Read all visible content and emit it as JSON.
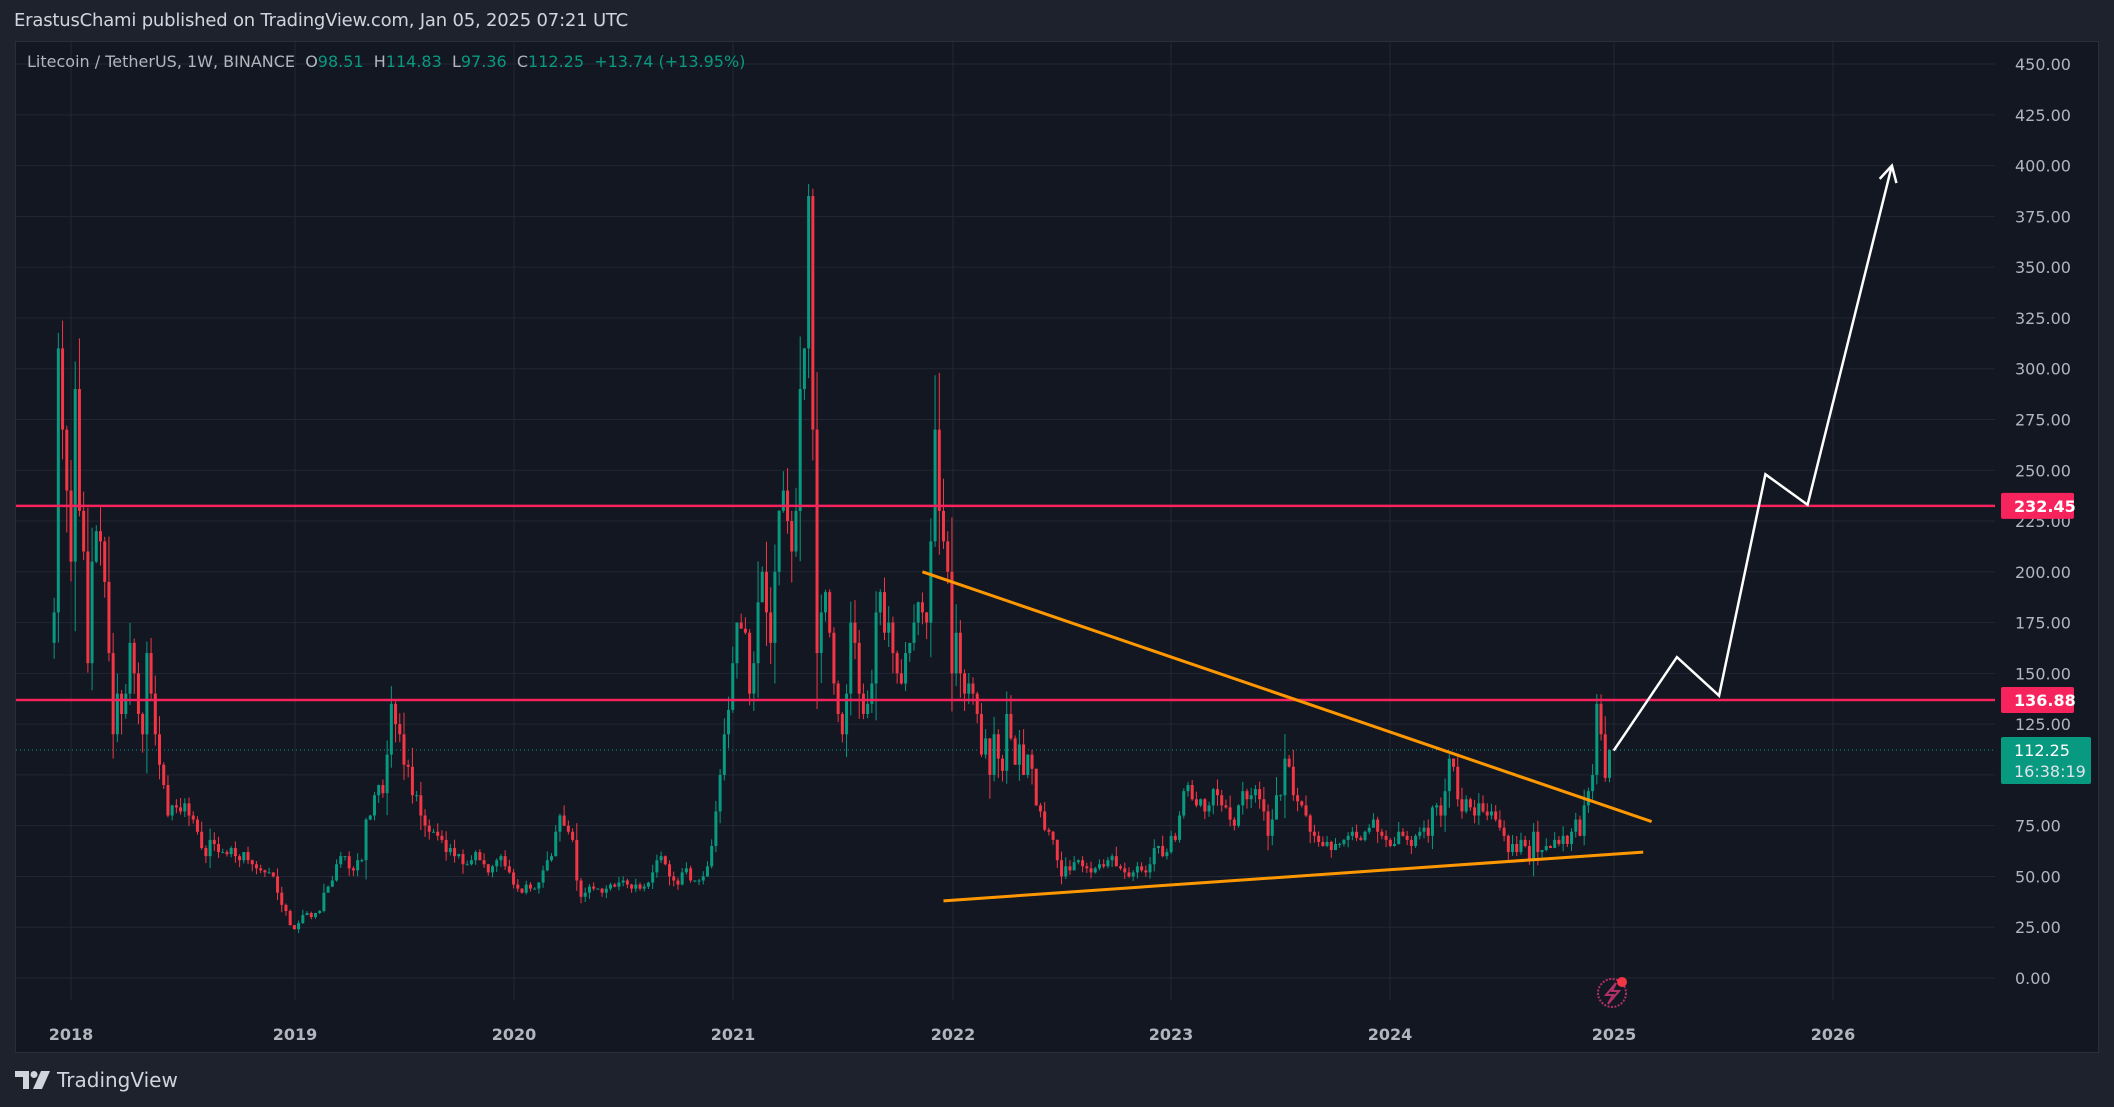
{
  "header": {
    "published": "ErastusChami published on TradingView.com, Jan 05, 2025 07:21 UTC"
  },
  "legend": {
    "symbol": "Litecoin / TetherUS, 1W, BINANCE",
    "o_label": "O",
    "o_value": "98.51",
    "h_label": "H",
    "h_value": "114.83",
    "l_label": "L",
    "l_value": "97.36",
    "c_label": "C",
    "c_value": "112.25",
    "change": "+13.74 (+13.95%)"
  },
  "footer": {
    "brand": "TradingView"
  },
  "colors": {
    "up": "#089981",
    "down": "#f23645",
    "level": "#f7235d",
    "trend": "#ff9800",
    "projection": "#ffffff",
    "grid": "#232733",
    "axis_text": "#b2b5be",
    "last_price_bg": "#089981"
  },
  "chart_data": {
    "type": "candlestick",
    "title": "Litecoin / TetherUS, 1W, BINANCE",
    "xlabel": "",
    "ylabel": "",
    "ylim": [
      0,
      450
    ],
    "y_ticks": [
      "450.00",
      "425.00",
      "400.00",
      "375.00",
      "350.00",
      "325.00",
      "300.00",
      "275.00",
      "250.00",
      "225.00",
      "200.00",
      "175.00",
      "150.00",
      "125.00",
      "100.00",
      "75.00",
      "50.00",
      "25.00",
      "0.00"
    ],
    "y_tick_values": [
      450,
      425,
      400,
      375,
      350,
      325,
      300,
      275,
      250,
      225,
      200,
      175,
      150,
      125,
      100,
      75,
      50,
      25,
      0
    ],
    "x_ticks": [
      "2018",
      "2019",
      "2020",
      "2021",
      "2022",
      "2023",
      "2024",
      "2025",
      "2026"
    ],
    "grid": true,
    "first_week": "2017-12-04",
    "closes": [
      180,
      310,
      270,
      240,
      205,
      290,
      230,
      210,
      155,
      205,
      220,
      215,
      195,
      160,
      120,
      140,
      130,
      140,
      165,
      150,
      130,
      120,
      160,
      140,
      120,
      105,
      95,
      80,
      85,
      84,
      82,
      86,
      80,
      78,
      72,
      64,
      60,
      68,
      66,
      62,
      62,
      61,
      64,
      60,
      58,
      62,
      58,
      56,
      54,
      53,
      52,
      52,
      50,
      42,
      36,
      33,
      26,
      24,
      27,
      31,
      32,
      30,
      32,
      33,
      42,
      45,
      48,
      56,
      60,
      60,
      54,
      53,
      58,
      58,
      78,
      80,
      90,
      95,
      91,
      110,
      135,
      125,
      120,
      105,
      104,
      90,
      90,
      80,
      75,
      72,
      72,
      70,
      68,
      62,
      64,
      60,
      61,
      56,
      56,
      58,
      62,
      58,
      56,
      52,
      55,
      58,
      60,
      55,
      52,
      46,
      44,
      42,
      46,
      44,
      44,
      47,
      53,
      58,
      60,
      72,
      80,
      75,
      72,
      68,
      48,
      40,
      42,
      45,
      44,
      44,
      42,
      44,
      46,
      45,
      47,
      48,
      46,
      44,
      46,
      44,
      45,
      47,
      52,
      58,
      60,
      56,
      50,
      48,
      46,
      52,
      54,
      48,
      48,
      48,
      50,
      55,
      65,
      82,
      100,
      120,
      132,
      155,
      175,
      172,
      170,
      140,
      155,
      185,
      200,
      180,
      165,
      200,
      230,
      240,
      225,
      210,
      230,
      290,
      310,
      385,
      270,
      160,
      180,
      190,
      170,
      145,
      130,
      120,
      140,
      175,
      165,
      140,
      130,
      135,
      145,
      180,
      190,
      170,
      175,
      160,
      150,
      145,
      160,
      165,
      175,
      185,
      180,
      175,
      215,
      270,
      230,
      215,
      200,
      150,
      170,
      150,
      140,
      145,
      140,
      130,
      110,
      118,
      100,
      120,
      108,
      102,
      130,
      118,
      105,
      115,
      100,
      110,
      103,
      85,
      82,
      73,
      72,
      68,
      58,
      50,
      55,
      53,
      57,
      58,
      55,
      54,
      52,
      54,
      56,
      55,
      58,
      60,
      55,
      54,
      52,
      50,
      52,
      55,
      53,
      52,
      56,
      64,
      65,
      60,
      62,
      70,
      68,
      80,
      92,
      95,
      88,
      85,
      88,
      82,
      85,
      93,
      90,
      85,
      84,
      78,
      75,
      85,
      92,
      88,
      90,
      93,
      88,
      82,
      70,
      78,
      90,
      90,
      108,
      104,
      90,
      87,
      85,
      80,
      72,
      70,
      67,
      65,
      67,
      63,
      66,
      66,
      68,
      70,
      72,
      69,
      68,
      72,
      74,
      78,
      72,
      70,
      68,
      65,
      66,
      72,
      70,
      68,
      65,
      70,
      72,
      74,
      70,
      84,
      85,
      80,
      92,
      108,
      104,
      88,
      82,
      88,
      84,
      80,
      86,
      82,
      80,
      82,
      78,
      74,
      70,
      62,
      66,
      62,
      68,
      65,
      58,
      72,
      62,
      63,
      65,
      64,
      68,
      66,
      70,
      66,
      72,
      78,
      70,
      85,
      92,
      100,
      135,
      120,
      98.51,
      112.25
    ],
    "levels": [
      {
        "label": "232.45",
        "value": 232.45
      },
      {
        "label": "136.88",
        "value": 136.88
      }
    ],
    "last_price": {
      "value": "112.25",
      "countdown": "16:38:19"
    },
    "trendlines": [
      {
        "name": "descending-resistance",
        "from": {
          "date": "2021-11-15",
          "price": 200
        },
        "to": {
          "date": "2025-03-10",
          "price": 77
        }
      },
      {
        "name": "ascending-support",
        "from": {
          "date": "2021-12-20",
          "price": 38
        },
        "to": {
          "date": "2025-02-24",
          "price": 62
        }
      }
    ],
    "projection_path": [
      {
        "date": "2025-01-06",
        "price": 112
      },
      {
        "date": "2025-04-21",
        "price": 158
      },
      {
        "date": "2025-06-30",
        "price": 139
      },
      {
        "date": "2025-09-15",
        "price": 248
      },
      {
        "date": "2025-11-24",
        "price": 233
      },
      {
        "date": "2026-04-13",
        "price": 400
      }
    ]
  }
}
